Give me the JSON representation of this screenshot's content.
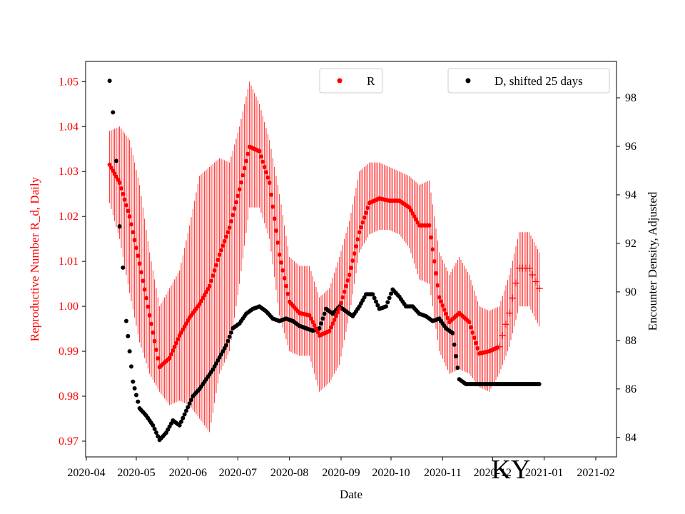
{
  "chart_data": {
    "type": "scatter",
    "state_label": "KY",
    "xlabel": "Date",
    "ylabel_left": "Reproductive Number R_d, Daily",
    "ylabel_right": "Encounter Density, Adjusted",
    "x_tick_labels": [
      "2020-04",
      "2020-05",
      "2020-06",
      "2020-07",
      "2020-08",
      "2020-09",
      "2020-10",
      "2020-11",
      "2020-12",
      "2021-01",
      "2021-02"
    ],
    "left_y_ticks": [
      "0.97",
      "0.98",
      "0.99",
      "1.00",
      "1.01",
      "1.02",
      "1.03",
      "1.04",
      "1.05"
    ],
    "right_y_ticks": [
      "84",
      "86",
      "88",
      "90",
      "92",
      "94",
      "96",
      "98"
    ],
    "left_ylim": [
      0.9665,
      1.0545
    ],
    "right_ylim": [
      83.2,
      99.5
    ],
    "x_range_days": [
      0,
      306
    ],
    "legend_r": "R",
    "legend_d": "D, shifted 25 days",
    "colors": {
      "r_series": "#ff0000",
      "d_series": "#000000",
      "left_axis_text": "#ff0000"
    },
    "r_series": {
      "name": "R",
      "day": [
        14,
        20,
        26,
        32,
        38,
        44,
        50,
        56,
        62,
        68,
        74,
        80,
        86,
        92,
        98,
        104,
        110,
        116,
        122,
        128,
        134,
        140,
        146,
        152,
        158,
        164,
        170,
        176,
        182,
        188,
        194,
        200,
        206,
        212,
        218,
        224,
        230,
        236,
        242,
        248,
        254,
        260,
        266,
        272
      ],
      "value": [
        1.0315,
        1.0275,
        1.02,
        1.0095,
        0.998,
        0.9865,
        0.9885,
        0.9935,
        0.9975,
        1.0005,
        1.0045,
        1.0115,
        1.0175,
        1.026,
        1.0355,
        1.0345,
        1.0275,
        1.0115,
        1.001,
        0.9985,
        0.998,
        0.9935,
        0.9945,
        0.9995,
        1.007,
        1.0165,
        1.023,
        1.024,
        1.0235,
        1.0235,
        1.022,
        1.018,
        1.018,
        1.002,
        0.9965,
        0.9985,
        0.9965,
        0.9895,
        0.99,
        0.991,
        0.9985,
        1.0085,
        1.0085,
        1.004
      ],
      "err_low": [
        1.023,
        1.015,
        1.003,
        0.992,
        0.985,
        0.981,
        0.978,
        0.979,
        0.978,
        0.975,
        0.972,
        0.985,
        0.99,
        1.005,
        1.022,
        1.022,
        1.015,
        0.998,
        0.99,
        0.989,
        0.989,
        0.981,
        0.983,
        0.987,
        0.998,
        1.012,
        1.016,
        1.017,
        1.017,
        1.016,
        1.013,
        1.006,
        1.005,
        0.99,
        0.985,
        0.986,
        0.985,
        0.982,
        0.981,
        0.985,
        0.991,
        1.0,
        1.0,
        0.9955
      ],
      "err_high": [
        1.039,
        1.04,
        1.037,
        1.027,
        1.012,
        1.0,
        1.004,
        1.008,
        1.018,
        1.029,
        1.031,
        1.033,
        1.032,
        1.04,
        1.05,
        1.045,
        1.037,
        1.025,
        1.011,
        1.009,
        1.009,
        1.002,
        1.004,
        1.011,
        1.019,
        1.03,
        1.032,
        1.032,
        1.031,
        1.03,
        1.029,
        1.027,
        1.028,
        1.012,
        1.007,
        1.011,
        1.007,
        1.0,
        0.999,
        1.0,
        1.007,
        1.0165,
        1.0165,
        1.012
      ]
    },
    "d_series": {
      "name": "D, shifted 25 days",
      "day": [
        14,
        16,
        18,
        20,
        22,
        24,
        28,
        32,
        36,
        40,
        44,
        48,
        52,
        56,
        60,
        64,
        68,
        72,
        76,
        80,
        84,
        88,
        92,
        96,
        100,
        104,
        108,
        112,
        116,
        120,
        124,
        128,
        132,
        136,
        140,
        144,
        148,
        152,
        156,
        160,
        164,
        168,
        172,
        176,
        180,
        184,
        188,
        192,
        196,
        200,
        204,
        208,
        212,
        216,
        220,
        224,
        228,
        232,
        236,
        240,
        244,
        248,
        252,
        256,
        260,
        264,
        268,
        272
      ],
      "value": [
        98.7,
        97.4,
        95.4,
        92.7,
        91.0,
        88.8,
        86.3,
        85.2,
        84.9,
        84.5,
        83.9,
        84.2,
        84.7,
        84.5,
        85.1,
        85.7,
        86.0,
        86.4,
        86.8,
        87.3,
        87.8,
        88.5,
        88.7,
        89.1,
        89.3,
        89.4,
        89.2,
        88.9,
        88.8,
        88.9,
        88.8,
        88.6,
        88.5,
        88.4,
        88.5,
        89.3,
        89.1,
        89.4,
        89.2,
        89.0,
        89.4,
        89.9,
        89.9,
        89.3,
        89.4,
        90.1,
        89.8,
        89.4,
        89.4,
        89.1,
        89.0,
        88.8,
        88.9,
        88.5,
        88.3,
        86.4,
        86.2,
        86.2,
        86.2,
        86.2,
        86.2,
        86.2,
        86.2,
        86.2,
        86.2,
        86.2,
        86.2,
        86.2
      ]
    }
  }
}
